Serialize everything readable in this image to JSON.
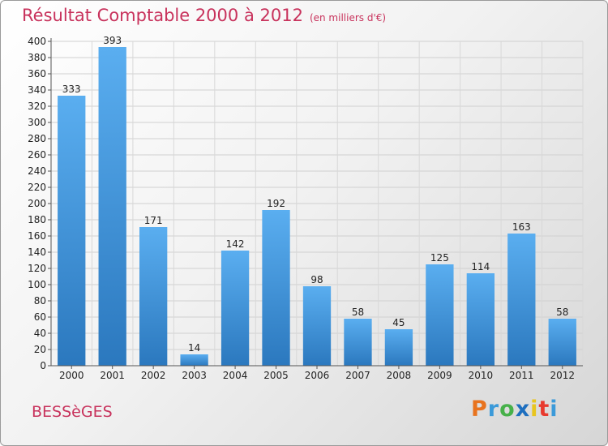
{
  "header": {
    "title": "Résultat Comptable 2000 à 2012",
    "subtitle": "(en milliers d'€)"
  },
  "footer": {
    "town": "BESSèGES",
    "logo": {
      "letters": [
        "P",
        "r",
        "o",
        "x",
        "i",
        "t",
        "i"
      ],
      "colors": [
        "#e8731e",
        "#3b9ad9",
        "#47b14a",
        "#1e6fbf",
        "#e8c51e",
        "#e83a2e",
        "#3b9ad9"
      ]
    }
  },
  "chart_data": {
    "type": "bar",
    "categories": [
      "2000",
      "2001",
      "2002",
      "2003",
      "2004",
      "2005",
      "2006",
      "2007",
      "2008",
      "2009",
      "2010",
      "2011",
      "2012"
    ],
    "values": [
      333,
      393,
      171,
      14,
      142,
      192,
      98,
      58,
      45,
      125,
      114,
      163,
      58
    ],
    "ylim": [
      0,
      400
    ],
    "yticks": [
      0,
      20,
      40,
      60,
      80,
      100,
      120,
      140,
      160,
      180,
      200,
      220,
      240,
      260,
      280,
      300,
      320,
      340,
      360,
      380,
      400
    ],
    "grid": true,
    "bar_color": "#3d8fd6"
  }
}
